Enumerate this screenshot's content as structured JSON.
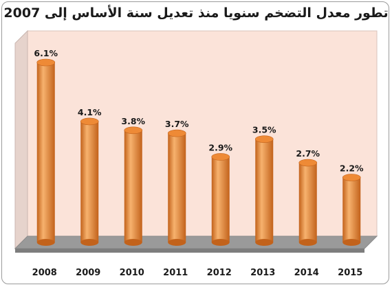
{
  "chart_data": {
    "type": "bar",
    "title": "تطور معدل التضخم سنويا منذ تعديل سنة الأساس إلى 2007",
    "categories": [
      "2008",
      "2009",
      "2010",
      "2011",
      "2012",
      "2013",
      "2014",
      "2015"
    ],
    "values": [
      6.1,
      4.1,
      3.8,
      3.7,
      2.9,
      3.5,
      2.7,
      2.2
    ],
    "value_labels": [
      "6.1%",
      "4.1%",
      "3.8%",
      "3.7%",
      "2.9%",
      "3.5%",
      "2.7%",
      "2.2%"
    ],
    "xlabel": "",
    "ylabel": "",
    "ylim": [
      0,
      6.5
    ],
    "grid": false,
    "legend": "none",
    "style": "3d-cylinder"
  },
  "colors": {
    "bar_light": "#f7b26e",
    "bar_mid": "#ee8a36",
    "bar_dark": "#c2621b",
    "back_wall": "#fbe3d9",
    "side_wall": "#e6d3cc",
    "floor": "#9a9a9a",
    "floor_shadow": "#7d7d7d"
  }
}
